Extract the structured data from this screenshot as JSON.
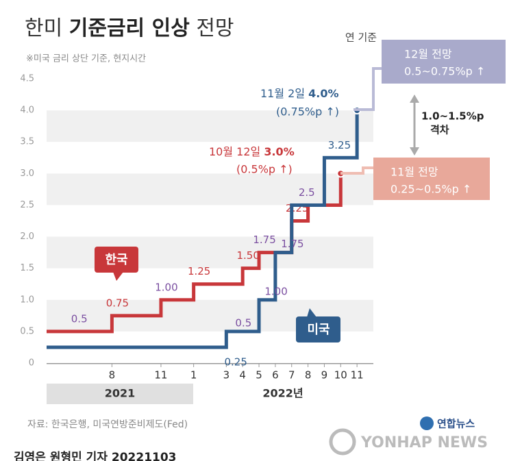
{
  "chart_data": {
    "type": "step",
    "title": "한미 ",
    "title_bold": "기준금리 인상",
    "title_end": " 전망",
    "subtitle": "※미국 금리 상단 기준, 현지시간",
    "x_unit_note": "연 기준",
    "xlim": [
      4,
      24
    ],
    "xticks": [
      8,
      11,
      {
        "value": 13,
        "label": "1"
      },
      {
        "value": 15,
        "label": "3"
      },
      {
        "value": 16,
        "label": "4"
      },
      {
        "value": 17,
        "label": "5"
      },
      {
        "value": 18,
        "label": "6"
      },
      {
        "value": 19,
        "label": "7"
      },
      {
        "value": 20,
        "label": "8"
      },
      {
        "value": 21,
        "label": "9"
      },
      {
        "value": 22,
        "label": "10"
      },
      {
        "value": 23,
        "label": "11"
      }
    ],
    "x_groups": [
      "2021",
      "2022년"
    ],
    "ylim": [
      0,
      4.5
    ],
    "yticks": [
      0,
      0.5,
      {
        "value": 1,
        "label": "1.0"
      },
      1.5,
      {
        "value": 2,
        "label": "2.0"
      },
      2.5,
      {
        "value": 3,
        "label": "3.0"
      },
      3.5,
      {
        "value": 4,
        "label": "4.0"
      },
      4.5
    ],
    "grid": "bands",
    "series": [
      {
        "name": "한국",
        "color": "#c8373a",
        "x": [
          4,
          8,
          11,
          13,
          16,
          17,
          19,
          20,
          22
        ],
        "values": [
          0.5,
          0.75,
          1.0,
          1.25,
          1.5,
          1.75,
          2.25,
          2.5,
          3.0
        ],
        "value_labels": [
          "0.5",
          "0.75",
          "1.00",
          "1.25",
          "1.50",
          "1.75",
          "2.25",
          null,
          null
        ]
      },
      {
        "name": "미국",
        "color": "#2f5d8c",
        "x": [
          4,
          15,
          17,
          18,
          19,
          21,
          23
        ],
        "values": [
          0.25,
          0.5,
          1.0,
          1.75,
          2.5,
          3.25,
          4.0
        ],
        "value_labels": [
          "0.25",
          "0.5",
          "1.00",
          "1.75",
          "2.5",
          "3.25",
          null
        ]
      }
    ],
    "annotations": {
      "us_last": "11월 2일 ",
      "us_last_bold": "4.0%",
      "us_change": "(0.75%p ↑)",
      "kr_last": "10월 12일 ",
      "kr_last_bold": "3.0%",
      "kr_change": "(0.5%p ↑)",
      "us_outlook_title": "12월 전망",
      "us_outlook": "0.5~0.75%p ↑",
      "kr_outlook_title": "11월 전망",
      "kr_outlook": "0.25~0.5%p ↑",
      "gap": "1.0~1.5%p",
      "gap_word": "격차"
    },
    "source": "자료: 한국은행, 미국연방준비제도(Fed)",
    "brand": "연합뉴스",
    "brand_en": "YONHAP NEWS",
    "byline": "김영은 원형민 기자  20221103"
  }
}
